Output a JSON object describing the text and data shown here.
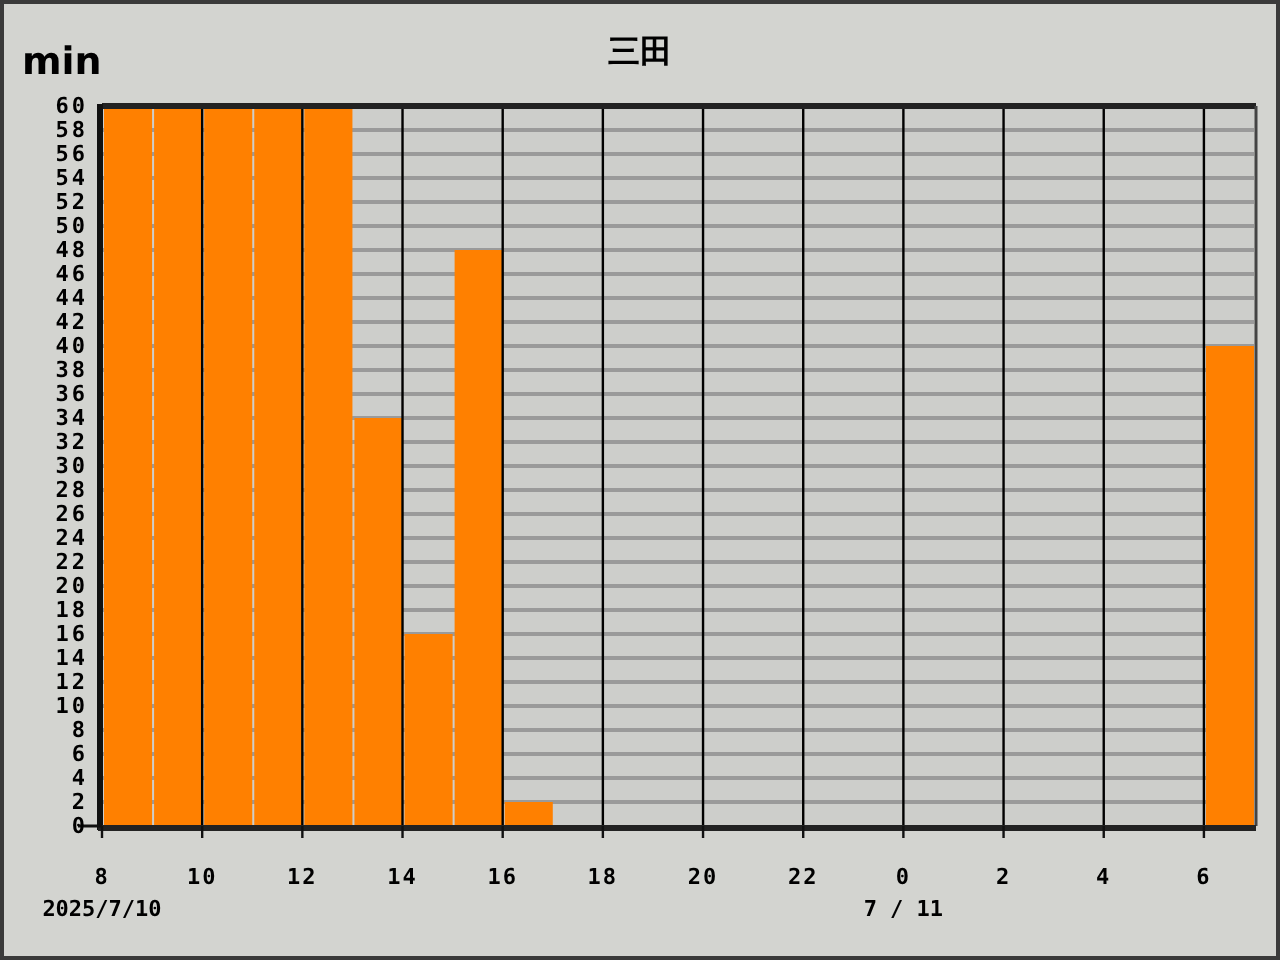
{
  "chart_data": {
    "type": "histogram",
    "title": "三田",
    "ylabel": "min",
    "bins": [
      "2025-07-10T08:00",
      "2025-07-10T09:00",
      "2025-07-10T10:00",
      "2025-07-10T11:00",
      "2025-07-10T12:00",
      "2025-07-10T13:00",
      "2025-07-10T14:00",
      "2025-07-10T15:00",
      "2025-07-10T16:00",
      "2025-07-10T17:00",
      "2025-07-10T18:00",
      "2025-07-10T19:00",
      "2025-07-10T20:00",
      "2025-07-10T21:00",
      "2025-07-10T22:00",
      "2025-07-10T23:00",
      "2025-07-11T00:00",
      "2025-07-11T01:00",
      "2025-07-11T02:00",
      "2025-07-11T03:00",
      "2025-07-11T04:00",
      "2025-07-11T05:00",
      "2025-07-11T06:00",
      "2025-07-11T07:00"
    ],
    "values": [
      60,
      60,
      60,
      60,
      60,
      34,
      16,
      48,
      2,
      0,
      0,
      0,
      0,
      0,
      0,
      0,
      0,
      0,
      0,
      0,
      0,
      0,
      40
    ],
    "color": "#ff8000",
    "xlim": [
      "2025-07-10T08:00",
      "2025-07-11T07:00"
    ],
    "xticks": [
      {
        "value": "2025-07-10T08:00",
        "label": "8"
      },
      {
        "value": "2025-07-10T10:00",
        "label": "10"
      },
      {
        "value": "2025-07-10T12:00",
        "label": "12"
      },
      {
        "value": "2025-07-10T14:00",
        "label": "14"
      },
      {
        "value": "2025-07-10T16:00",
        "label": "16"
      },
      {
        "value": "2025-07-10T18:00",
        "label": "18"
      },
      {
        "value": "2025-07-10T20:00",
        "label": "20"
      },
      {
        "value": "2025-07-10T22:00",
        "label": "22"
      },
      {
        "value": "2025-07-11T00:00",
        "label": "0"
      },
      {
        "value": "2025-07-11T02:00",
        "label": "2"
      },
      {
        "value": "2025-07-11T04:00",
        "label": "4"
      },
      {
        "value": "2025-07-11T06:00",
        "label": "6"
      }
    ],
    "ylim": [
      0,
      60
    ],
    "yticks": [
      0,
      2,
      4,
      6,
      8,
      10,
      12,
      14,
      16,
      18,
      20,
      22,
      24,
      26,
      28,
      30,
      32,
      34,
      36,
      38,
      40,
      42,
      44,
      46,
      48,
      50,
      52,
      54,
      56,
      58,
      60
    ],
    "grid": true,
    "annotations": [
      "2025/7/10",
      "7 / 11"
    ]
  }
}
